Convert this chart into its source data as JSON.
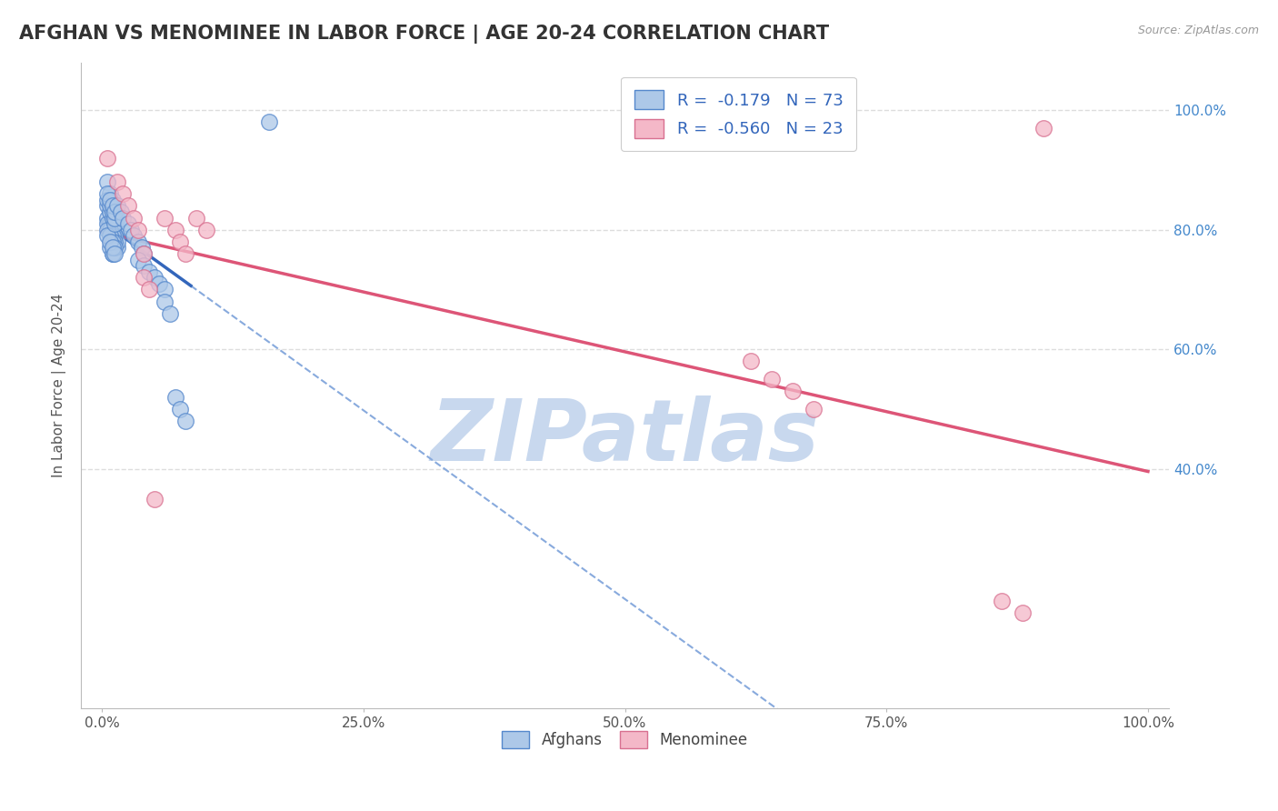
{
  "title": "AFGHAN VS MENOMINEE IN LABOR FORCE | AGE 20-24 CORRELATION CHART",
  "source_text": "Source: ZipAtlas.com",
  "ylabel": "In Labor Force | Age 20-24",
  "xlim": [
    -0.02,
    1.02
  ],
  "ylim": [
    0.0,
    1.08
  ],
  "xticks": [
    0,
    0.25,
    0.5,
    0.75,
    1.0
  ],
  "xticklabels": [
    "0.0%",
    "25.0%",
    "50.0%",
    "75.0%",
    "100.0%"
  ],
  "yticks": [
    0.4,
    0.6,
    0.8,
    1.0
  ],
  "yticklabels": [
    "40.0%",
    "60.0%",
    "80.0%",
    "100.0%"
  ],
  "afghan_R": -0.179,
  "afghan_N": 73,
  "menominee_R": -0.56,
  "menominee_N": 23,
  "afghan_color": "#adc8e8",
  "afghan_edge": "#5588cc",
  "menominee_color": "#f4b8c8",
  "menominee_edge": "#d87090",
  "afghan_trend_color": "#3366bb",
  "menominee_trend_color": "#dd5577",
  "dashed_color": "#88aadd",
  "background_color": "#ffffff",
  "grid_color": "#dddddd",
  "title_color": "#333333",
  "legend_R_color": "#3366bb",
  "watermark_color": "#c8d8ee",
  "watermark_text": "ZIPatlas",
  "afghan_points": [
    [
      0.005,
      0.88
    ],
    [
      0.008,
      0.86
    ],
    [
      0.01,
      0.85
    ],
    [
      0.012,
      0.84
    ],
    [
      0.008,
      0.83
    ],
    [
      0.01,
      0.82
    ],
    [
      0.012,
      0.81
    ],
    [
      0.015,
      0.8
    ],
    [
      0.01,
      0.79
    ],
    [
      0.012,
      0.78
    ],
    [
      0.015,
      0.77
    ],
    [
      0.01,
      0.76
    ],
    [
      0.012,
      0.83
    ],
    [
      0.015,
      0.82
    ],
    [
      0.008,
      0.81
    ],
    [
      0.01,
      0.8
    ],
    [
      0.012,
      0.79
    ],
    [
      0.015,
      0.78
    ],
    [
      0.008,
      0.77
    ],
    [
      0.01,
      0.76
    ],
    [
      0.012,
      0.83
    ],
    [
      0.015,
      0.82
    ],
    [
      0.008,
      0.81
    ],
    [
      0.01,
      0.8
    ],
    [
      0.005,
      0.82
    ],
    [
      0.008,
      0.81
    ],
    [
      0.01,
      0.8
    ],
    [
      0.012,
      0.79
    ],
    [
      0.005,
      0.81
    ],
    [
      0.008,
      0.8
    ],
    [
      0.01,
      0.79
    ],
    [
      0.012,
      0.78
    ],
    [
      0.005,
      0.8
    ],
    [
      0.008,
      0.79
    ],
    [
      0.01,
      0.78
    ],
    [
      0.012,
      0.77
    ],
    [
      0.005,
      0.79
    ],
    [
      0.008,
      0.78
    ],
    [
      0.01,
      0.77
    ],
    [
      0.012,
      0.76
    ],
    [
      0.005,
      0.84
    ],
    [
      0.008,
      0.83
    ],
    [
      0.01,
      0.82
    ],
    [
      0.012,
      0.81
    ],
    [
      0.005,
      0.85
    ],
    [
      0.008,
      0.84
    ],
    [
      0.01,
      0.83
    ],
    [
      0.012,
      0.82
    ],
    [
      0.005,
      0.86
    ],
    [
      0.008,
      0.85
    ],
    [
      0.01,
      0.84
    ],
    [
      0.012,
      0.83
    ],
    [
      0.015,
      0.84
    ],
    [
      0.018,
      0.83
    ],
    [
      0.02,
      0.82
    ],
    [
      0.025,
      0.81
    ],
    [
      0.028,
      0.8
    ],
    [
      0.03,
      0.79
    ],
    [
      0.035,
      0.78
    ],
    [
      0.038,
      0.77
    ],
    [
      0.04,
      0.76
    ],
    [
      0.035,
      0.75
    ],
    [
      0.04,
      0.74
    ],
    [
      0.045,
      0.73
    ],
    [
      0.05,
      0.72
    ],
    [
      0.055,
      0.71
    ],
    [
      0.06,
      0.7
    ],
    [
      0.06,
      0.68
    ],
    [
      0.065,
      0.66
    ],
    [
      0.07,
      0.52
    ],
    [
      0.075,
      0.5
    ],
    [
      0.08,
      0.48
    ],
    [
      0.16,
      0.98
    ]
  ],
  "menominee_points": [
    [
      0.005,
      0.92
    ],
    [
      0.015,
      0.88
    ],
    [
      0.02,
      0.86
    ],
    [
      0.025,
      0.84
    ],
    [
      0.03,
      0.82
    ],
    [
      0.035,
      0.8
    ],
    [
      0.04,
      0.76
    ],
    [
      0.04,
      0.72
    ],
    [
      0.045,
      0.7
    ],
    [
      0.05,
      0.35
    ],
    [
      0.06,
      0.82
    ],
    [
      0.07,
      0.8
    ],
    [
      0.075,
      0.78
    ],
    [
      0.08,
      0.76
    ],
    [
      0.09,
      0.82
    ],
    [
      0.1,
      0.8
    ],
    [
      0.62,
      0.58
    ],
    [
      0.64,
      0.55
    ],
    [
      0.66,
      0.53
    ],
    [
      0.68,
      0.5
    ],
    [
      0.86,
      0.18
    ],
    [
      0.88,
      0.16
    ],
    [
      0.9,
      0.97
    ]
  ],
  "afghan_trend_x_start": 0.0,
  "afghan_trend_x_solid_end": 0.085,
  "afghan_trend_x_dashed_end": 1.0,
  "menominee_trend_x_start": 0.0,
  "menominee_trend_x_end": 1.0
}
